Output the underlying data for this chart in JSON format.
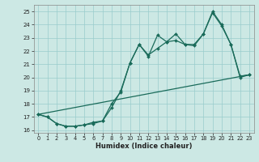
{
  "xlabel": "Humidex (Indice chaleur)",
  "bg_color": "#cce8e4",
  "grid_color": "#99cccc",
  "line_color": "#1a6b5a",
  "xlim": [
    -0.5,
    23.5
  ],
  "ylim": [
    15.8,
    25.5
  ],
  "xticks": [
    0,
    1,
    2,
    3,
    4,
    5,
    6,
    7,
    8,
    9,
    10,
    11,
    12,
    13,
    14,
    15,
    16,
    17,
    18,
    19,
    20,
    21,
    22,
    23
  ],
  "yticks": [
    16,
    17,
    18,
    19,
    20,
    21,
    22,
    23,
    24,
    25
  ],
  "line_straight": {
    "x": [
      0,
      23
    ],
    "y": [
      17.2,
      20.2
    ]
  },
  "line2": {
    "x": [
      0,
      1,
      2,
      3,
      4,
      5,
      6,
      7,
      8,
      9,
      10,
      11,
      12,
      13,
      14,
      15,
      16,
      17,
      18,
      19,
      20,
      21,
      22,
      23
    ],
    "y": [
      17.2,
      17.0,
      16.5,
      16.3,
      16.3,
      16.4,
      16.5,
      16.7,
      18.0,
      18.9,
      21.1,
      22.5,
      21.7,
      22.2,
      22.7,
      22.8,
      22.5,
      22.4,
      23.3,
      25.0,
      24.0,
      22.5,
      20.0,
      20.2
    ]
  },
  "line3": {
    "x": [
      0,
      1,
      2,
      3,
      4,
      5,
      6,
      7,
      8,
      9,
      10,
      11,
      12,
      13,
      14,
      15,
      16,
      17,
      18,
      19,
      20,
      21,
      22,
      23
    ],
    "y": [
      17.2,
      17.0,
      16.5,
      16.3,
      16.3,
      16.4,
      16.6,
      16.7,
      17.7,
      19.0,
      21.1,
      22.5,
      21.6,
      23.2,
      22.7,
      23.3,
      22.5,
      22.5,
      23.3,
      24.9,
      23.9,
      22.5,
      20.1,
      20.2
    ]
  }
}
